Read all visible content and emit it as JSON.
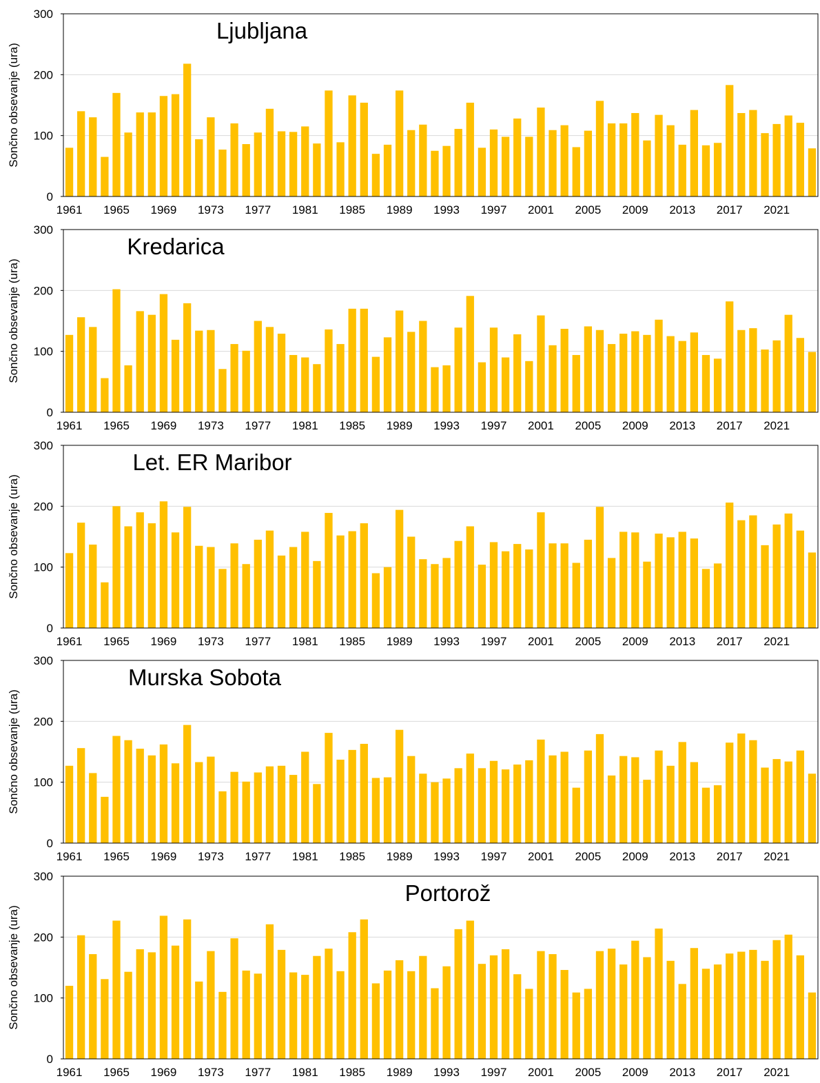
{
  "colors": {
    "bar": "#FFC000",
    "grid": "#D9D9D9",
    "axis": "#000000",
    "text": "#000000"
  },
  "chart_data": [
    {
      "type": "bar",
      "title": "Ljubljana",
      "ylabel": "Sončno obsevanje (ura)",
      "xlabel": "",
      "ylim": [
        0,
        300
      ],
      "yticks": [
        0,
        100,
        200,
        300
      ],
      "xtick_labels": [
        "1961",
        "1965",
        "1969",
        "1973",
        "1977",
        "1981",
        "1985",
        "1989",
        "1993",
        "1997",
        "2001",
        "2005",
        "2009",
        "2013",
        "2017",
        "2021"
      ],
      "grid": true,
      "categories": [
        1961,
        1962,
        1963,
        1964,
        1965,
        1966,
        1967,
        1968,
        1969,
        1970,
        1971,
        1972,
        1973,
        1974,
        1975,
        1976,
        1977,
        1978,
        1979,
        1980,
        1981,
        1982,
        1983,
        1984,
        1985,
        1986,
        1987,
        1988,
        1989,
        1990,
        1991,
        1992,
        1993,
        1994,
        1995,
        1996,
        1997,
        1998,
        1999,
        2000,
        2001,
        2002,
        2003,
        2004,
        2005,
        2006,
        2007,
        2008,
        2009,
        2010,
        2011,
        2012,
        2013,
        2014,
        2015,
        2016,
        2017,
        2018,
        2019,
        2020,
        2021,
        2022,
        2023,
        2024
      ],
      "values": [
        80,
        140,
        130,
        65,
        170,
        105,
        138,
        138,
        165,
        168,
        218,
        94,
        130,
        77,
        120,
        86,
        105,
        144,
        107,
        106,
        115,
        87,
        174,
        89,
        166,
        154,
        70,
        85,
        174,
        109,
        118,
        75,
        83,
        111,
        154,
        80,
        110,
        98,
        128,
        98,
        146,
        109,
        117,
        81,
        108,
        157,
        120,
        120,
        137,
        92,
        134,
        117,
        85,
        142,
        84,
        88,
        183,
        137,
        142,
        104,
        119,
        133,
        121,
        79
      ]
    },
    {
      "type": "bar",
      "title": "Kredarica",
      "ylabel": "Sončno obsevanje (ura)",
      "xlabel": "",
      "ylim": [
        0,
        300
      ],
      "yticks": [
        0,
        100,
        200,
        300
      ],
      "xtick_labels": [
        "1961",
        "1965",
        "1969",
        "1973",
        "1977",
        "1981",
        "1985",
        "1989",
        "1993",
        "1997",
        "2001",
        "2005",
        "2009",
        "2013",
        "2017",
        "2021"
      ],
      "grid": true,
      "categories": [
        1961,
        1962,
        1963,
        1964,
        1965,
        1966,
        1967,
        1968,
        1969,
        1970,
        1971,
        1972,
        1973,
        1974,
        1975,
        1976,
        1977,
        1978,
        1979,
        1980,
        1981,
        1982,
        1983,
        1984,
        1985,
        1986,
        1987,
        1988,
        1989,
        1990,
        1991,
        1992,
        1993,
        1994,
        1995,
        1996,
        1997,
        1998,
        1999,
        2000,
        2001,
        2002,
        2003,
        2004,
        2005,
        2006,
        2007,
        2008,
        2009,
        2010,
        2011,
        2012,
        2013,
        2014,
        2015,
        2016,
        2017,
        2018,
        2019,
        2020,
        2021,
        2022,
        2023,
        2024
      ],
      "values": [
        127,
        156,
        140,
        56,
        202,
        77,
        166,
        160,
        194,
        119,
        179,
        134,
        135,
        71,
        112,
        101,
        150,
        140,
        129,
        94,
        90,
        79,
        136,
        112,
        170,
        170,
        91,
        123,
        167,
        132,
        150,
        74,
        77,
        139,
        191,
        82,
        139,
        90,
        128,
        84,
        159,
        110,
        137,
        94,
        141,
        135,
        112,
        129,
        133,
        127,
        152,
        125,
        117,
        131,
        94,
        88,
        182,
        135,
        138,
        103,
        118,
        160,
        122,
        99
      ]
    },
    {
      "type": "bar",
      "title": "Let. ER Maribor",
      "ylabel": "Sončno obsevanje (ura)",
      "xlabel": "",
      "ylim": [
        0,
        300
      ],
      "yticks": [
        0,
        100,
        200,
        300
      ],
      "xtick_labels": [
        "1961",
        "1965",
        "1969",
        "1973",
        "1977",
        "1981",
        "1985",
        "1989",
        "1993",
        "1997",
        "2001",
        "2005",
        "2009",
        "2013",
        "2017",
        "2021"
      ],
      "grid": true,
      "categories": [
        1961,
        1962,
        1963,
        1964,
        1965,
        1966,
        1967,
        1968,
        1969,
        1970,
        1971,
        1972,
        1973,
        1974,
        1975,
        1976,
        1977,
        1978,
        1979,
        1980,
        1981,
        1982,
        1983,
        1984,
        1985,
        1986,
        1987,
        1988,
        1989,
        1990,
        1991,
        1992,
        1993,
        1994,
        1995,
        1996,
        1997,
        1998,
        1999,
        2000,
        2001,
        2002,
        2003,
        2004,
        2005,
        2006,
        2007,
        2008,
        2009,
        2010,
        2011,
        2012,
        2013,
        2014,
        2015,
        2016,
        2017,
        2018,
        2019,
        2020,
        2021,
        2022,
        2023,
        2024
      ],
      "values": [
        123,
        173,
        137,
        75,
        200,
        167,
        190,
        172,
        208,
        157,
        199,
        135,
        133,
        97,
        139,
        105,
        145,
        160,
        119,
        133,
        158,
        110,
        189,
        152,
        159,
        172,
        90,
        100,
        194,
        150,
        113,
        105,
        115,
        143,
        167,
        104,
        141,
        126,
        138,
        129,
        190,
        139,
        139,
        107,
        145,
        199,
        115,
        158,
        157,
        109,
        155,
        149,
        158,
        147,
        97,
        106,
        206,
        177,
        185,
        136,
        170,
        188,
        160,
        124
      ]
    },
    {
      "type": "bar",
      "title": "Murska Sobota",
      "ylabel": "Sončno obsevanje (ura)",
      "xlabel": "",
      "ylim": [
        0,
        300
      ],
      "yticks": [
        0,
        100,
        200,
        300
      ],
      "xtick_labels": [
        "1961",
        "1965",
        "1969",
        "1973",
        "1977",
        "1981",
        "1985",
        "1989",
        "1993",
        "1997",
        "2001",
        "2005",
        "2009",
        "2013",
        "2017",
        "2021"
      ],
      "grid": true,
      "categories": [
        1961,
        1962,
        1963,
        1964,
        1965,
        1966,
        1967,
        1968,
        1969,
        1970,
        1971,
        1972,
        1973,
        1974,
        1975,
        1976,
        1977,
        1978,
        1979,
        1980,
        1981,
        1982,
        1983,
        1984,
        1985,
        1986,
        1987,
        1988,
        1989,
        1990,
        1991,
        1992,
        1993,
        1994,
        1995,
        1996,
        1997,
        1998,
        1999,
        2000,
        2001,
        2002,
        2003,
        2004,
        2005,
        2006,
        2007,
        2008,
        2009,
        2010,
        2011,
        2012,
        2013,
        2014,
        2015,
        2016,
        2017,
        2018,
        2019,
        2020,
        2021,
        2022,
        2023,
        2024
      ],
      "values": [
        127,
        156,
        115,
        76,
        176,
        169,
        155,
        144,
        162,
        131,
        194,
        133,
        142,
        85,
        117,
        101,
        116,
        126,
        127,
        112,
        150,
        97,
        181,
        137,
        153,
        163,
        107,
        108,
        186,
        143,
        114,
        100,
        106,
        123,
        147,
        123,
        135,
        121,
        129,
        136,
        170,
        144,
        150,
        91,
        152,
        179,
        111,
        143,
        141,
        104,
        152,
        127,
        166,
        133,
        91,
        95,
        165,
        180,
        169,
        124,
        138,
        134,
        152,
        114
      ]
    },
    {
      "type": "bar",
      "title": "Portorož",
      "ylabel": "Sončno obsevanje (ura)",
      "xlabel": "",
      "ylim": [
        0,
        300
      ],
      "yticks": [
        0,
        100,
        200,
        300
      ],
      "xtick_labels": [
        "1961",
        "1965",
        "1969",
        "1973",
        "1977",
        "1981",
        "1985",
        "1989",
        "1993",
        "1997",
        "2001",
        "2005",
        "2009",
        "2013",
        "2017",
        "2021"
      ],
      "grid": true,
      "categories": [
        1961,
        1962,
        1963,
        1964,
        1965,
        1966,
        1967,
        1968,
        1969,
        1970,
        1971,
        1972,
        1973,
        1974,
        1975,
        1976,
        1977,
        1978,
        1979,
        1980,
        1981,
        1982,
        1983,
        1984,
        1985,
        1986,
        1987,
        1988,
        1989,
        1990,
        1991,
        1992,
        1993,
        1994,
        1995,
        1996,
        1997,
        1998,
        1999,
        2000,
        2001,
        2002,
        2003,
        2004,
        2005,
        2006,
        2007,
        2008,
        2009,
        2010,
        2011,
        2012,
        2013,
        2014,
        2015,
        2016,
        2017,
        2018,
        2019,
        2020,
        2021,
        2022,
        2023,
        2024
      ],
      "values": [
        120,
        203,
        172,
        131,
        227,
        143,
        180,
        175,
        235,
        186,
        229,
        127,
        177,
        110,
        198,
        145,
        140,
        221,
        179,
        142,
        138,
        169,
        181,
        144,
        208,
        229,
        124,
        145,
        162,
        144,
        169,
        116,
        152,
        213,
        227,
        156,
        170,
        180,
        139,
        115,
        177,
        172,
        146,
        109,
        115,
        177,
        181,
        155,
        194,
        167,
        214,
        161,
        123,
        182,
        148,
        155,
        173,
        176,
        179,
        161,
        195,
        204,
        170,
        109
      ]
    }
  ]
}
